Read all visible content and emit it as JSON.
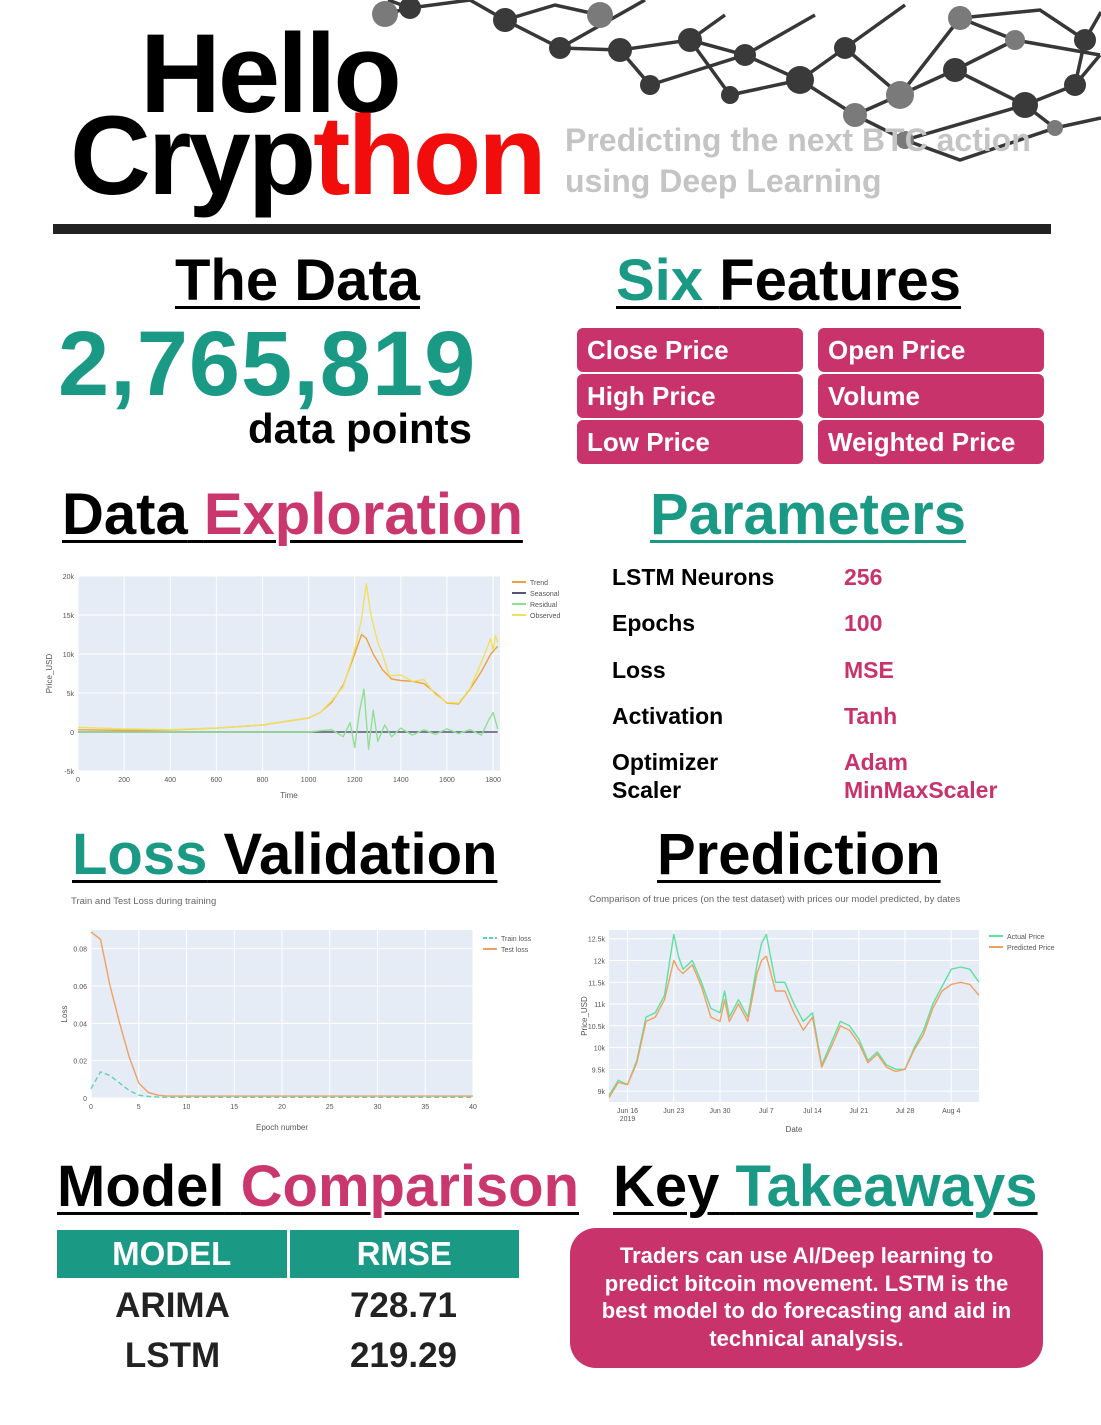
{
  "header": {
    "title_line1": "Hello",
    "title_line2_black": "Cryp",
    "title_line2_red": "thon",
    "subtitle_line1": "Predicting the next BTC action",
    "subtitle_line2": "using Deep Learning"
  },
  "colors": {
    "teal": "#1a9985",
    "pink": "#c9336c",
    "red": "#f20d0d",
    "dark": "#222222"
  },
  "the_data": {
    "heading": "The Data",
    "count": "2,765,819",
    "unit": "data points"
  },
  "features": {
    "heading_teal": "Six",
    "heading_black": "Features",
    "items": [
      "Close Price",
      "Open Price",
      "High Price",
      "Volume",
      "Low Price",
      "Weighted Price"
    ]
  },
  "exploration": {
    "heading_black": "Data",
    "heading_pink": "Exploration"
  },
  "parameters": {
    "heading": "Parameters",
    "rows": [
      {
        "label": "LSTM Neurons",
        "value": "256"
      },
      {
        "label": "Epochs",
        "value": "100"
      },
      {
        "label": "Loss",
        "value": "MSE"
      },
      {
        "label": "Activation",
        "value": "Tanh"
      },
      {
        "label": "Optimizer",
        "value": "Adam"
      },
      {
        "label": "Scaler",
        "value": "MinMaxScaler"
      }
    ]
  },
  "loss_validation": {
    "heading_teal": "Loss",
    "heading_black": "Validation"
  },
  "prediction": {
    "heading": "Prediction"
  },
  "model_comparison": {
    "heading_black": "Model",
    "heading_pink": "Comparison",
    "columns": [
      "MODEL",
      "RMSE"
    ],
    "rows": [
      [
        "ARIMA",
        "728.71"
      ],
      [
        "LSTM",
        "219.29"
      ]
    ]
  },
  "takeaways": {
    "heading_black": "Key",
    "heading_teal": "Takeaways",
    "text": "Traders can use AI/Deep learning to predict bitcoin movement. LSTM is the best model to do forecasting and aid in technical analysis."
  },
  "chart_data": [
    {
      "type": "line",
      "title": "",
      "xlabel": "Time",
      "ylabel": "Price_USD",
      "xlim": [
        0,
        1830
      ],
      "ylim": [
        -5000,
        20000
      ],
      "xticks": [
        0,
        200,
        400,
        600,
        800,
        1000,
        1200,
        1400,
        1600,
        1800
      ],
      "yticks": [
        -5000,
        0,
        5000,
        10000,
        15000,
        20000
      ],
      "ytick_labels": [
        "-5k",
        "0",
        "5k",
        "10k",
        "15k",
        "20k"
      ],
      "grid": true,
      "legend_position": "top-right",
      "series": [
        {
          "name": "Trend",
          "color": "#f0a040",
          "x": [
            0,
            200,
            400,
            600,
            800,
            1000,
            1050,
            1100,
            1150,
            1200,
            1230,
            1250,
            1280,
            1320,
            1360,
            1400,
            1450,
            1500,
            1550,
            1600,
            1650,
            1700,
            1750,
            1790,
            1820
          ],
          "y": [
            300,
            200,
            250,
            500,
            900,
            1800,
            2500,
            3800,
            6000,
            10000,
            12500,
            12000,
            10000,
            8000,
            6800,
            6600,
            6500,
            6200,
            5000,
            3700,
            3600,
            5500,
            7800,
            10000,
            11000
          ]
        },
        {
          "name": "Seasonal",
          "color": "#555577",
          "x": [
            0,
            300,
            600,
            900,
            1200,
            1500,
            1820
          ],
          "y": [
            0,
            0,
            0,
            0,
            0,
            0,
            0
          ]
        },
        {
          "name": "Residual",
          "color": "#90e090",
          "x": [
            0,
            1000,
            1100,
            1150,
            1180,
            1200,
            1220,
            1240,
            1260,
            1280,
            1300,
            1330,
            1360,
            1400,
            1450,
            1500,
            1550,
            1600,
            1650,
            1700,
            1750,
            1780,
            1800,
            1820
          ],
          "y": [
            0,
            0,
            300,
            -600,
            1200,
            -2000,
            2500,
            5500,
            -2200,
            2800,
            -1200,
            900,
            -600,
            500,
            -400,
            300,
            -300,
            400,
            -200,
            300,
            -400,
            1500,
            2500,
            400
          ]
        },
        {
          "name": "Observed",
          "color": "#f0e060",
          "x": [
            0,
            200,
            400,
            600,
            800,
            1000,
            1050,
            1100,
            1150,
            1200,
            1230,
            1250,
            1270,
            1300,
            1320,
            1350,
            1400,
            1450,
            1500,
            1550,
            1600,
            1650,
            1700,
            1750,
            1790,
            1800,
            1810,
            1820
          ],
          "y": [
            600,
            400,
            300,
            500,
            900,
            1800,
            2500,
            4000,
            5800,
            10500,
            14500,
            19000,
            15000,
            11500,
            10000,
            7200,
            7300,
            6500,
            6700,
            4800,
            3800,
            3700,
            5600,
            9000,
            12000,
            10500,
            12400,
            11500
          ]
        }
      ]
    },
    {
      "type": "line",
      "title": "Train and Test Loss during training",
      "xlabel": "Epoch number",
      "ylabel": "Loss",
      "xlim": [
        0,
        40
      ],
      "ylim": [
        0,
        0.09
      ],
      "xticks": [
        0,
        5,
        10,
        15,
        20,
        25,
        30,
        35,
        40
      ],
      "yticks": [
        0,
        0.02,
        0.04,
        0.06,
        0.08
      ],
      "grid": true,
      "legend_position": "top-right",
      "series": [
        {
          "name": "Train loss",
          "color": "#5fd3b8",
          "dash": true,
          "x": [
            0,
            1,
            2,
            3,
            4,
            5,
            6,
            7,
            8,
            10,
            40
          ],
          "y": [
            0.005,
            0.014,
            0.012,
            0.008,
            0.004,
            0.0015,
            0.0008,
            0.0005,
            0.0004,
            0.0004,
            0.0004
          ]
        },
        {
          "name": "Test loss",
          "color": "#f0a060",
          "x": [
            0,
            1,
            2,
            3,
            4,
            5,
            6,
            7,
            8,
            10,
            40
          ],
          "y": [
            0.089,
            0.085,
            0.06,
            0.04,
            0.022,
            0.008,
            0.003,
            0.0015,
            0.001,
            0.001,
            0.001
          ]
        }
      ]
    },
    {
      "type": "line",
      "title": "Comparison of true prices (on the test dataset) with prices our model predicted, by dates",
      "xlabel": "Date",
      "ylabel": "Price_USD",
      "xlim": [
        0,
        80
      ],
      "ylim": [
        8750,
        12700
      ],
      "xticks": [
        4,
        14,
        24,
        34,
        44,
        54,
        64,
        74
      ],
      "xtick_labels": [
        "Jun 16\n2019",
        "Jun 23",
        "Jun 30",
        "Jul 7",
        "Jul 14",
        "Jul 21",
        "Jul 28",
        "Aug 4"
      ],
      "yticks": [
        9000,
        9500,
        10000,
        10500,
        11000,
        11500,
        12000,
        12500
      ],
      "ytick_labels": [
        "9k",
        "9.5k",
        "10k",
        "10.5k",
        "11k",
        "11.5k",
        "12k",
        "12.5k"
      ],
      "grid": true,
      "legend_position": "top-right",
      "x": [
        0,
        2,
        4,
        6,
        8,
        10,
        12,
        14,
        15,
        16,
        18,
        20,
        22,
        24,
        25,
        26,
        28,
        30,
        32,
        33,
        34,
        36,
        38,
        40,
        42,
        44,
        46,
        48,
        50,
        52,
        54,
        56,
        58,
        60,
        62,
        64,
        66,
        68,
        70,
        72,
        74,
        76,
        78,
        80
      ],
      "series": [
        {
          "name": "Actual Price",
          "color": "#5fe0a0",
          "y": [
            8900,
            9250,
            9150,
            9700,
            10700,
            10800,
            11200,
            12600,
            12100,
            11800,
            12000,
            11500,
            10900,
            10800,
            11300,
            10700,
            11100,
            10700,
            11900,
            12400,
            12600,
            11500,
            11500,
            11000,
            10600,
            10800,
            9600,
            10100,
            10600,
            10500,
            10200,
            9700,
            9900,
            9600,
            9500,
            9500,
            10000,
            10400,
            11000,
            11400,
            11800,
            11850,
            11800,
            11500
          ]
        },
        {
          "name": "Predicted Price",
          "color": "#f0a060",
          "y": [
            8850,
            9200,
            9150,
            9650,
            10600,
            10700,
            11100,
            12000,
            11800,
            11700,
            11900,
            11400,
            10700,
            10600,
            11100,
            10600,
            11000,
            10600,
            11700,
            12000,
            12100,
            11300,
            11300,
            10800,
            10400,
            10700,
            9550,
            10000,
            10500,
            10400,
            10100,
            9650,
            9850,
            9550,
            9450,
            9500,
            9950,
            10300,
            10900,
            11300,
            11450,
            11500,
            11450,
            11200
          ]
        }
      ]
    }
  ]
}
